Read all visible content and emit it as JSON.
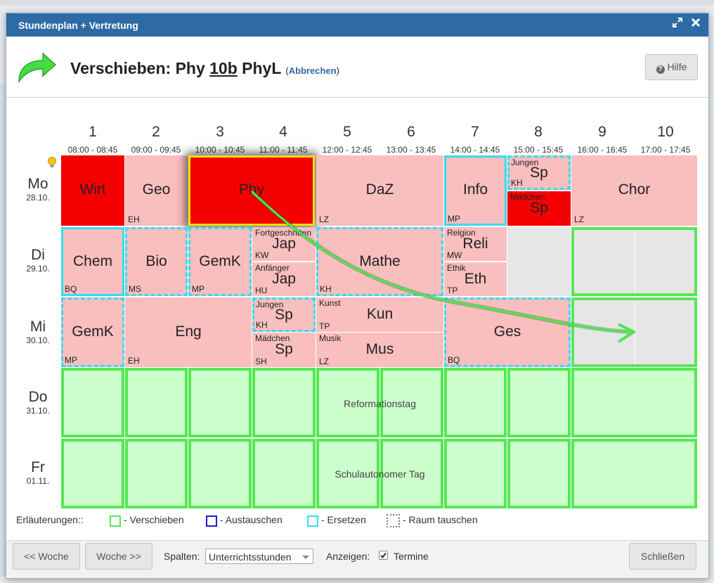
{
  "dialog": {
    "title": "Stundenplan + Vertretung",
    "header_prefix": "Verschieben: Phy ",
    "header_class": "10b",
    "header_suffix": " PhyL ",
    "cancel_open": "(",
    "cancel_link": "Abbrechen",
    "cancel_close": ")",
    "help_label": "Hilfe"
  },
  "columns": [
    {
      "num": "1",
      "time": "08:00 - 08:45"
    },
    {
      "num": "2",
      "time": "09:00 - 09:45"
    },
    {
      "num": "3",
      "time": "10:00 - 10:45"
    },
    {
      "num": "4",
      "time": "11:00 - 11:45"
    },
    {
      "num": "5",
      "time": "12:00 - 12:45"
    },
    {
      "num": "6",
      "time": "13:00 - 13:45"
    },
    {
      "num": "7",
      "time": "14:00 - 14:45"
    },
    {
      "num": "8",
      "time": "15:00 - 15:45"
    },
    {
      "num": "9",
      "time": "16:00 - 16:45"
    },
    {
      "num": "10",
      "time": "17:00 - 17:45"
    }
  ],
  "days": [
    {
      "name": "Mo",
      "date": "28.10."
    },
    {
      "name": "Di",
      "date": "29.10."
    },
    {
      "name": "Mi",
      "date": "30.10."
    },
    {
      "name": "Do",
      "date": "31.10."
    },
    {
      "name": "Fr",
      "date": "01.11."
    }
  ],
  "lessons": {
    "mo_wirt": "Wirt",
    "mo_geo": "Geo",
    "mo_geo_t": "EH",
    "mo_phy": "Phy",
    "mo_daz": "DaZ",
    "mo_daz_t": "LZ",
    "mo_info": "Info",
    "mo_info_t": "MP",
    "mo_sp1_g": "Jungen",
    "mo_sp1": "Sp",
    "mo_sp1_t": "KH",
    "mo_sp2_g": "Mädchen",
    "mo_sp2": "Sp",
    "mo_chor": "Chor",
    "mo_chor_t": "LZ",
    "di_chem": "Chem",
    "di_chem_t": "BQ",
    "di_bio": "Bio",
    "di_bio_t": "MS",
    "di_gemk": "GemK",
    "di_gemk_t": "MP",
    "di_jap1_g": "Fortgeschritten",
    "di_jap1": "Jap",
    "di_jap1_t": "KW",
    "di_jap2_g": "Anfänger",
    "di_jap2": "Jap",
    "di_jap2_t": "HU",
    "di_mathe": "Mathe",
    "di_mathe_t": "KH",
    "di_reli_g": "Relgion",
    "di_reli": "Reli",
    "di_reli_t": "MW",
    "di_eth_g": "Ethik",
    "di_eth": "Eth",
    "di_eth_t": "TP",
    "mi_gemk": "GemK",
    "mi_gemk_t": "MP",
    "mi_eng": "Eng",
    "mi_eng_t": "EH",
    "mi_sp1_g": "Jungen",
    "mi_sp1": "Sp",
    "mi_sp1_t": "KH",
    "mi_sp2_g": "Mädchen",
    "mi_sp2": "Sp",
    "mi_sp2_t": "SH",
    "mi_kun_g": "Kunst",
    "mi_kun": "Kun",
    "mi_kun_t": "TP",
    "mi_mus_g": "Musik",
    "mi_mus": "Mus",
    "mi_mus_t": "LZ",
    "mi_ges": "Ges",
    "mi_ges_t": "BQ",
    "do_event": "Reformationstag",
    "fr_event": "Schulautonomer Tag"
  },
  "legend": {
    "title": "Erläuterungen::",
    "move": "- Verschieben",
    "swap": "- Austauschen",
    "replace": "- Ersetzen",
    "room": "- Raum tauschen"
  },
  "footer": {
    "prev_week": "<< Woche",
    "next_week": "Woche >>",
    "columns_label": "Spalten:",
    "columns_value": "Unterrichtsstunden",
    "show_label": "Anzeigen:",
    "termine_label": "Termine",
    "close_label": "Schließen"
  },
  "colors": {
    "titlebar": "#2e6aa5",
    "lesson": "#f9bebe",
    "highlight": "#f50000",
    "move_target": "#55e855",
    "replace": "#33ddee",
    "swap": "#1a1ad0"
  },
  "icons": [
    "redo-arrow-icon",
    "expand-icon",
    "close-icon",
    "question-circle-icon",
    "lightbulb-icon",
    "checkbox-checked-icon",
    "caret-down-icon"
  ]
}
